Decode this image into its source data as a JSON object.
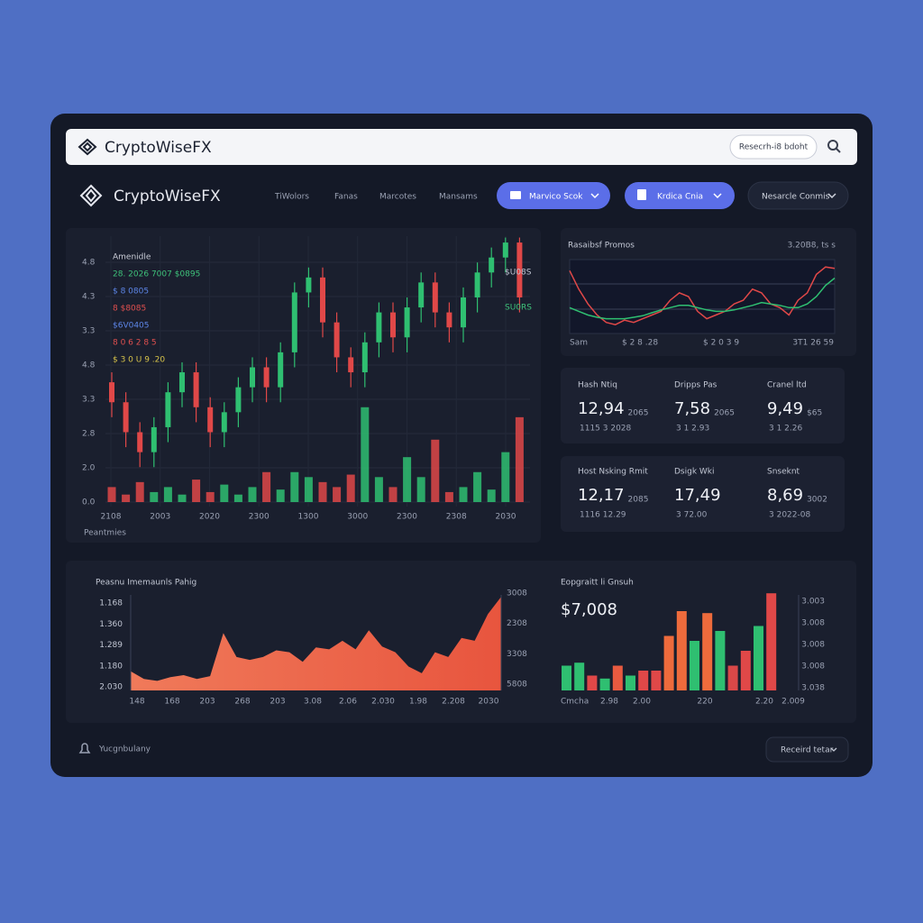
{
  "browser": {
    "brand": "CryptoWiseFX",
    "search": "Resecrh-i8 bdoht"
  },
  "nav": {
    "brand": "CryptoWiseFX",
    "links": [
      "TiWolors",
      "Fanas",
      "Marcotes",
      "Mansams"
    ],
    "buttons": [
      "Marvico Scok",
      "Krdica Cnia",
      "Nesarcle Conmis"
    ]
  },
  "main_chart": {
    "type": "candlestick",
    "y_labels": [
      "4.8",
      "4.3",
      "3.3",
      "4.8",
      "3.3",
      "2.8",
      "2.0",
      "0.0"
    ],
    "x_labels": [
      "2108",
      "2003",
      "2020",
      "2300",
      "1300",
      "3000",
      "2300",
      "2308",
      "2030"
    ],
    "legend": [
      "Amenidle",
      "28. 2026 7007 $0895",
      "$ 8 0805",
      "8 $8085",
      "$6V0405",
      "8 0 6 2 8 5",
      "$ 3 0 U 9 .20"
    ],
    "legend_colors": [
      "#c9ccd6",
      "#3ec27a",
      "#5d86e8",
      "#e0504f",
      "#5d86e8",
      "#e0504f",
      "#d7c34a"
    ],
    "right_labels": [
      "$U08S",
      "SU0RS"
    ],
    "footer": "Peantmies",
    "ylim": [
      0,
      5.4
    ],
    "up_color": "#2fbf71",
    "down_color": "#e04848",
    "open": [
      2.4,
      2.0,
      1.4,
      1.0,
      1.5,
      2.2,
      2.6,
      1.9,
      1.4,
      1.8,
      2.3,
      2.7,
      2.3,
      3.0,
      4.2,
      4.5,
      3.6,
      2.9,
      2.6,
      3.2,
      3.8,
      3.3,
      3.9,
      4.4,
      3.8,
      3.5,
      4.1,
      4.6,
      4.9,
      5.2
    ],
    "close": [
      2.0,
      1.4,
      1.0,
      1.5,
      2.2,
      2.6,
      1.9,
      1.4,
      1.8,
      2.3,
      2.7,
      2.3,
      3.0,
      4.2,
      4.5,
      3.6,
      2.9,
      2.6,
      3.2,
      3.8,
      3.3,
      3.9,
      4.4,
      3.8,
      3.5,
      4.1,
      4.6,
      4.9,
      5.2,
      4.1
    ],
    "high": [
      2.6,
      2.2,
      1.6,
      1.7,
      2.4,
      2.8,
      2.8,
      2.1,
      2.0,
      2.5,
      2.9,
      2.9,
      3.2,
      4.4,
      4.7,
      4.7,
      3.8,
      3.1,
      3.4,
      4.0,
      4.0,
      4.1,
      4.6,
      4.6,
      4.0,
      4.3,
      4.8,
      5.1,
      5.3,
      5.3
    ],
    "low": [
      1.7,
      1.1,
      0.7,
      0.7,
      1.2,
      1.9,
      1.6,
      1.1,
      1.1,
      1.5,
      2.0,
      2.0,
      2.0,
      2.7,
      3.9,
      3.3,
      2.6,
      2.3,
      2.3,
      2.9,
      3.0,
      3.0,
      3.6,
      3.5,
      3.2,
      3.2,
      3.8,
      4.3,
      4.6,
      3.8
    ],
    "volume": [
      0.3,
      0.15,
      0.4,
      0.2,
      0.3,
      0.15,
      0.45,
      0.2,
      0.35,
      0.15,
      0.3,
      0.6,
      0.25,
      0.6,
      0.5,
      0.4,
      0.3,
      0.55,
      1.9,
      0.5,
      0.3,
      0.9,
      0.5,
      1.25,
      0.2,
      0.3,
      0.6,
      0.25,
      1.0,
      1.7
    ]
  },
  "mini_chart": {
    "type": "line",
    "title": "Rasaibsf Promos",
    "corner": "3.20B8, ts s",
    "x_labels": [
      "Sam",
      "$ 2 8 .28",
      "$ 2 0 3 9",
      "3T1 26 59"
    ],
    "ylim": [
      0,
      10
    ],
    "series": [
      {
        "color": "#e04848",
        "values": [
          8.5,
          6.0,
          4.0,
          2.5,
          1.5,
          1.2,
          1.8,
          1.5,
          2.0,
          2.5,
          3.0,
          4.5,
          5.5,
          5.0,
          3.0,
          2.0,
          2.5,
          3.0,
          4.0,
          4.5,
          6.0,
          5.5,
          4.0,
          3.5,
          2.5,
          4.5,
          5.5,
          8.0,
          9.0,
          8.8
        ]
      },
      {
        "color": "#2fbf71",
        "values": [
          3.5,
          3.0,
          2.5,
          2.2,
          2.0,
          2.0,
          2.0,
          2.2,
          2.4,
          2.8,
          3.2,
          3.5,
          3.8,
          3.8,
          3.5,
          3.2,
          3.0,
          3.0,
          3.2,
          3.5,
          3.8,
          4.2,
          4.0,
          3.8,
          3.5,
          3.5,
          4.0,
          5.0,
          6.5,
          7.5
        ]
      }
    ]
  },
  "stats": [
    {
      "label": "Hash Ntiq",
      "value": "12,94",
      "unit": "2065",
      "sub": "1115 3 2028"
    },
    {
      "label": "Dripps Pas",
      "value": "7,58",
      "unit": "2065",
      "sub": "3 1 2.93"
    },
    {
      "label": "Cranel ltd",
      "value": "9,49",
      "unit": "$65",
      "sub": "3 1 2.26"
    },
    {
      "label": "Host Nsking Rmit",
      "value": "12,17",
      "unit": "2085",
      "sub": "1116 12.29"
    },
    {
      "label": "Dsigk Wki",
      "value": "17,49",
      "unit": "",
      "sub": "3 72.00"
    },
    {
      "label": "Snseknt",
      "value": "8,69",
      "unit": "3002",
      "sub": "3 2022-08"
    }
  ],
  "area_chart": {
    "type": "area",
    "title": "Peasnu Imemaunls Pahig",
    "left_labels": [
      "1.168",
      "1.360",
      "1.289",
      "1.180",
      "2.030"
    ],
    "right_labels": [
      "3008",
      "2308",
      "3308",
      "5808"
    ],
    "x_labels": [
      "148",
      "168",
      "203",
      "268",
      "203",
      "3.08",
      "2.06",
      "2.030",
      "1.98",
      "2.208",
      "2030"
    ],
    "ylim": [
      0,
      10
    ],
    "values": [
      2.0,
      1.2,
      1.0,
      1.4,
      1.6,
      1.2,
      1.5,
      6.0,
      3.5,
      3.2,
      3.5,
      4.2,
      4.0,
      3.0,
      4.5,
      4.3,
      5.2,
      4.3,
      6.3,
      4.6,
      4.0,
      2.5,
      1.8,
      4.0,
      3.5,
      5.5,
      5.2,
      8.0,
      9.8
    ]
  },
  "bar_chart": {
    "type": "bar",
    "title": "Eopgraitt li Gnsuh",
    "headline": "$7,008",
    "right_labels": [
      "3.003",
      "3.008",
      "3.008",
      "3.008",
      "3.038"
    ],
    "x_labels": [
      "Cmcha",
      "2.98",
      "2.00",
      "220",
      "2.20",
      "2.009"
    ],
    "ylim": [
      0,
      10
    ],
    "values": [
      2.5,
      2.8,
      1.5,
      1.2,
      2.5,
      1.5,
      2.0,
      2.0,
      5.5,
      8.0,
      5.0,
      7.8,
      6.0,
      2.5,
      4.0,
      6.5,
      9.8
    ],
    "colors": [
      "#2fbf71",
      "#2fbf71",
      "#e04848",
      "#2fbf71",
      "#e85a40",
      "#2fbf71",
      "#e04848",
      "#e04848",
      "#ee6b3c",
      "#ee6b3c",
      "#2fbf71",
      "#ee6b3c",
      "#2fbf71",
      "#d94848",
      "#e04848",
      "#2fbf71",
      "#e04848"
    ]
  },
  "footer": {
    "status": "Yucgnbulany",
    "button": "Receird tetar"
  }
}
